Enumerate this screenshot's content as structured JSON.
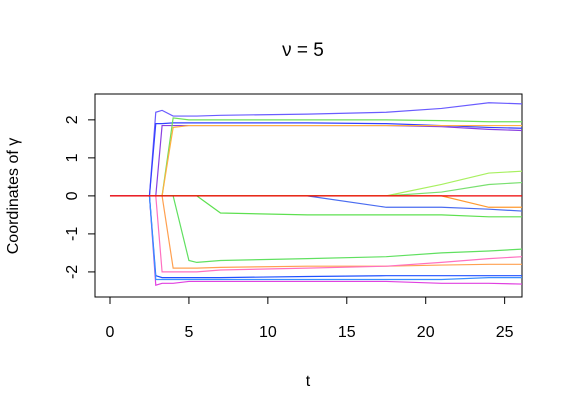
{
  "chart_data": {
    "type": "line",
    "title": "ν = 5",
    "xlabel": "t",
    "ylabel": "Coordinates of γ",
    "x": [
      0,
      2.5,
      2.9,
      3.3,
      4,
      5,
      5.5,
      7,
      12.5,
      17.5,
      21,
      24,
      26.1
    ],
    "series": [
      {
        "color": "#6a5cff",
        "values": [
          0,
          0,
          2.2,
          2.25,
          2.1,
          2.1,
          2.1,
          2.12,
          2.15,
          2.2,
          2.3,
          2.45,
          2.42
        ]
      },
      {
        "color": "#3340ff",
        "values": [
          0,
          0,
          1.9,
          1.9,
          1.92,
          1.92,
          1.92,
          1.92,
          1.92,
          1.9,
          1.85,
          1.8,
          1.78
        ]
      },
      {
        "color": "#8a40e0",
        "values": [
          0,
          0,
          0,
          1.85,
          1.85,
          1.85,
          1.85,
          1.85,
          1.85,
          1.85,
          1.82,
          1.75,
          1.72
        ]
      },
      {
        "color": "#6ee05a",
        "values": [
          0,
          0,
          0,
          0,
          2.05,
          2.0,
          2.0,
          2.0,
          2.0,
          2.0,
          1.98,
          1.95,
          1.95
        ]
      },
      {
        "color": "#ffb040",
        "values": [
          0,
          0,
          0,
          0,
          1.8,
          1.85,
          1.85,
          1.85,
          1.85,
          1.85,
          1.85,
          1.85,
          1.85
        ]
      },
      {
        "color": "#5ee050",
        "values": [
          0,
          0,
          0,
          0,
          0,
          0,
          0,
          -0.45,
          -0.5,
          -0.5,
          -0.5,
          -0.55,
          -0.55
        ]
      },
      {
        "color": "#4a6cf0",
        "values": [
          0,
          0,
          0,
          0,
          0,
          0,
          0,
          0,
          0,
          -0.3,
          -0.3,
          -0.35,
          -0.4
        ]
      },
      {
        "color": "#a8f060",
        "values": [
          0,
          0,
          0,
          0,
          0,
          0,
          0,
          0,
          0,
          0,
          0.3,
          0.6,
          0.65
        ]
      },
      {
        "color": "#7ae070",
        "values": [
          0,
          0,
          0,
          0,
          0,
          0,
          0,
          0,
          0,
          0,
          0.1,
          0.3,
          0.35
        ]
      },
      {
        "color": "#ff9a30",
        "values": [
          0,
          0,
          0,
          0,
          0,
          0,
          0,
          0,
          0,
          0,
          0,
          -0.3,
          -0.3
        ]
      },
      {
        "color": "#60e060",
        "values": [
          0,
          0,
          0,
          0,
          0,
          -1.7,
          -1.75,
          -1.7,
          -1.65,
          -1.6,
          -1.5,
          -1.45,
          -1.4
        ]
      },
      {
        "color": "#e040e0",
        "values": [
          0,
          0,
          -2.35,
          -2.3,
          -2.3,
          -2.25,
          -2.25,
          -2.25,
          -2.25,
          -2.25,
          -2.3,
          -2.3,
          -2.32
        ]
      },
      {
        "color": "#2050ff",
        "values": [
          0,
          0,
          -2.1,
          -2.15,
          -2.15,
          -2.15,
          -2.15,
          -2.15,
          -2.12,
          -2.1,
          -2.1,
          -2.1,
          -2.1
        ]
      },
      {
        "color": "#3a90ff",
        "values": [
          0,
          0,
          -2.2,
          -2.2,
          -2.2,
          -2.2,
          -2.2,
          -2.2,
          -2.2,
          -2.2,
          -2.2,
          -2.15,
          -2.15
        ]
      },
      {
        "color": "#ffa050",
        "values": [
          0,
          0,
          0,
          0,
          -1.9,
          -1.9,
          -1.9,
          -1.88,
          -1.85,
          -1.85,
          -1.82,
          -1.8,
          -1.8
        ]
      },
      {
        "color": "#ff70c0",
        "values": [
          0,
          0,
          0,
          -2.0,
          -2.0,
          -2.0,
          -2.0,
          -1.95,
          -1.9,
          -1.85,
          -1.75,
          -1.65,
          -1.6
        ]
      },
      {
        "color": "#ee0000",
        "values": [
          0,
          0,
          0,
          0,
          0,
          0,
          0,
          0,
          0,
          0,
          0,
          0,
          0
        ]
      }
    ],
    "xlim": [
      -0.95,
      26.1
    ],
    "ylim": [
      -2.66,
      2.68
    ],
    "xticks": [
      0,
      5,
      10,
      15,
      20,
      25
    ],
    "yticks": [
      -2,
      -1,
      0,
      1,
      2
    ]
  }
}
